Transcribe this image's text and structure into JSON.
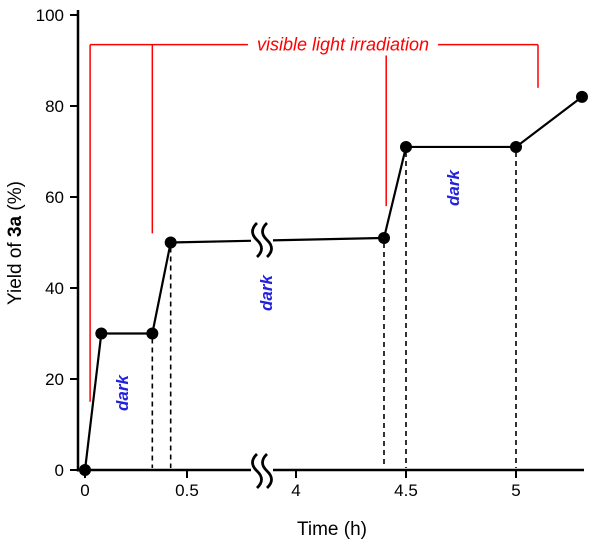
{
  "axes": {
    "x_label": "Time (h)",
    "y_label_prefix": "Yield of ",
    "y_label_bold": "3a",
    "y_label_suffix": " (%)"
  },
  "annotations": {
    "dark_color": "#2222dd"
  },
  "chart_data": {
    "type": "line",
    "title": "",
    "xlabel": "Time (h)",
    "ylabel": "Yield of 3a (%)",
    "ylim": [
      0,
      100
    ],
    "grid": false,
    "legend": false,
    "axis_break": {
      "left_segment_max": 0.75,
      "right_segment_min": 3.7
    },
    "y_ticks": [
      0,
      20,
      40,
      60,
      80,
      100
    ],
    "x_ticks": [
      {
        "t": 0,
        "label": "0"
      },
      {
        "t": 0.5,
        "label": "0.5"
      },
      {
        "t": 4,
        "label": "4"
      },
      {
        "t": 4.5,
        "label": "4.5"
      },
      {
        "t": 5,
        "label": "5"
      }
    ],
    "series": [
      {
        "name": "Yield of 3a",
        "color": "#000000",
        "points": [
          {
            "t": 0,
            "y": 0
          },
          {
            "t": 0.08,
            "y": 30
          },
          {
            "t": 0.33,
            "y": 30
          },
          {
            "t": 0.42,
            "y": 50
          },
          {
            "t": 4.4,
            "y": 51
          },
          {
            "t": 4.5,
            "y": 71
          },
          {
            "t": 5.0,
            "y": 71
          },
          {
            "t": 5.3,
            "y": 82
          }
        ]
      }
    ],
    "dashed_guides_t": [
      0.33,
      0.42,
      4.4,
      4.5,
      5.0
    ],
    "dark_labels": [
      {
        "label": "dark",
        "t": 0.185,
        "y": 17
      },
      {
        "label": "dark",
        "t": 3.87,
        "y": 39
      },
      {
        "label": "dark",
        "t": 4.72,
        "y": 62
      }
    ],
    "irradiation": {
      "label": "visible light irradiation",
      "color": "#ff0000",
      "bar_y": 93.5,
      "span_t": [
        0.025,
        5.1
      ],
      "verticals": [
        {
          "t": 0.025,
          "y_bottom": 15
        },
        {
          "t": 0.33,
          "y_bottom": 52
        },
        {
          "t": 4.41,
          "y_bottom": 58
        },
        {
          "t": 5.1,
          "y_bottom": 84
        }
      ]
    }
  }
}
